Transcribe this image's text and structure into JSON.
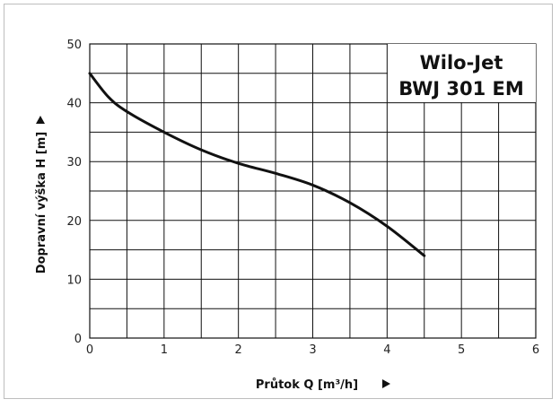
{
  "chart_data": {
    "type": "line",
    "title_lines": [
      "Wilo-Jet",
      "BWJ 301 EM"
    ],
    "xlabel": "Průtok Q [m³/h]",
    "ylabel": "Dopravní výška H [m]",
    "xlim": [
      0,
      6
    ],
    "ylim": [
      0,
      50
    ],
    "xticks": [
      "0",
      "1",
      "2",
      "3",
      "4",
      "5",
      "6"
    ],
    "yticks": [
      "0",
      "10",
      "20",
      "30",
      "40",
      "50"
    ],
    "grid": true,
    "series": [
      {
        "x": [
          0,
          0.25,
          0.5,
          1.0,
          1.5,
          2.0,
          2.5,
          3.0,
          3.5,
          4.0,
          4.5
        ],
        "y": [
          45,
          41,
          38.5,
          35,
          32,
          29.7,
          28,
          26,
          23,
          19,
          14
        ]
      }
    ],
    "colors": {
      "line": "#111111",
      "grid": "#111111",
      "frame": "#bdbdbd"
    }
  }
}
